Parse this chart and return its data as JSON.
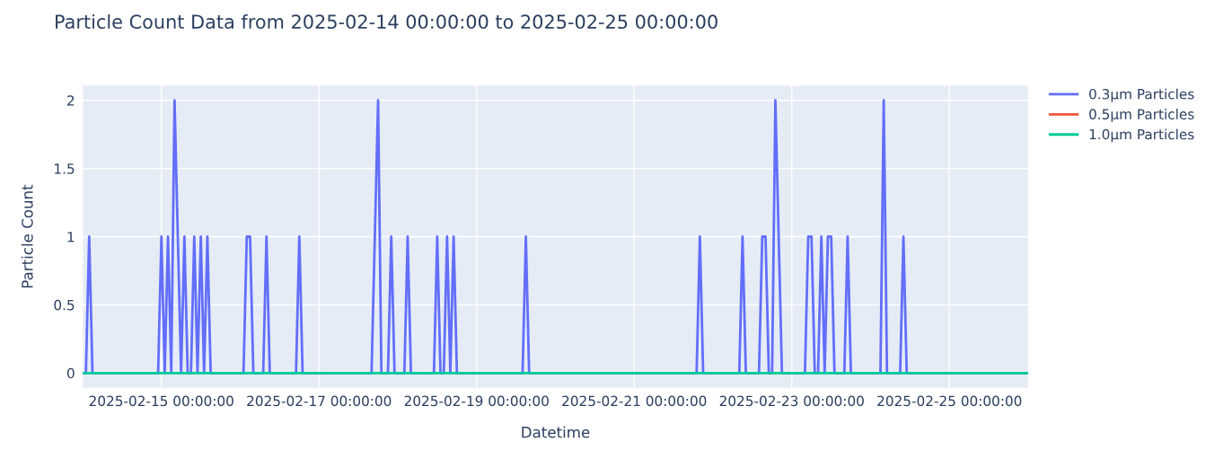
{
  "chart_data": {
    "type": "line",
    "title": "Particle Count Data from 2025-02-14 00:00:00 to 2025-02-25 00:00:00",
    "xlabel": "Datetime",
    "ylabel": "Particle Count",
    "series": [
      {
        "name": "0.3µm Particles",
        "color": "#636efa",
        "x": [
          "2025-02-14T00:00",
          "2025-02-14T01:00",
          "2025-02-14T02:00",
          "2025-02-14T03:00",
          "2025-02-14T23:00",
          "2025-02-15T00:00",
          "2025-02-15T01:00",
          "2025-02-15T02:00",
          "2025-02-15T03:00",
          "2025-02-15T04:00",
          "2025-02-15T05:00",
          "2025-02-15T06:00",
          "2025-02-15T07:00",
          "2025-02-15T08:00",
          "2025-02-15T09:00",
          "2025-02-15T10:00",
          "2025-02-15T11:00",
          "2025-02-15T12:00",
          "2025-02-15T13:00",
          "2025-02-15T14:00",
          "2025-02-15T15:00",
          "2025-02-16T01:00",
          "2025-02-16T02:00",
          "2025-02-16T03:00",
          "2025-02-16T04:00",
          "2025-02-16T07:00",
          "2025-02-16T08:00",
          "2025-02-16T09:00",
          "2025-02-16T17:00",
          "2025-02-16T18:00",
          "2025-02-16T19:00",
          "2025-02-17T16:00",
          "2025-02-17T17:00",
          "2025-02-17T18:00",
          "2025-02-17T19:00",
          "2025-02-17T21:00",
          "2025-02-17T22:00",
          "2025-02-17T23:00",
          "2025-02-18T02:00",
          "2025-02-18T03:00",
          "2025-02-18T04:00",
          "2025-02-18T11:00",
          "2025-02-18T12:00",
          "2025-02-18T13:00",
          "2025-02-18T14:00",
          "2025-02-18T15:00",
          "2025-02-18T16:00",
          "2025-02-18T17:00",
          "2025-02-18T18:00",
          "2025-02-19T14:00",
          "2025-02-19T15:00",
          "2025-02-19T16:00",
          "2025-02-21T19:00",
          "2025-02-21T20:00",
          "2025-02-21T21:00",
          "2025-02-22T08:00",
          "2025-02-22T09:00",
          "2025-02-22T10:00",
          "2025-02-22T14:00",
          "2025-02-22T15:00",
          "2025-02-22T16:00",
          "2025-02-22T17:00",
          "2025-02-22T18:00",
          "2025-02-22T19:00",
          "2025-02-22T20:00",
          "2025-02-22T21:00",
          "2025-02-23T04:00",
          "2025-02-23T05:00",
          "2025-02-23T06:00",
          "2025-02-23T07:00",
          "2025-02-23T08:00",
          "2025-02-23T09:00",
          "2025-02-23T10:00",
          "2025-02-23T11:00",
          "2025-02-23T12:00",
          "2025-02-23T13:00",
          "2025-02-23T16:00",
          "2025-02-23T17:00",
          "2025-02-23T18:00",
          "2025-02-24T03:00",
          "2025-02-24T04:00",
          "2025-02-24T05:00",
          "2025-02-24T09:00",
          "2025-02-24T10:00",
          "2025-02-24T11:00",
          "2025-02-26T00:00"
        ],
        "values": [
          0,
          0,
          1,
          0,
          0,
          1,
          0,
          1,
          0,
          2,
          1,
          0,
          1,
          0,
          0,
          1,
          0,
          1,
          0,
          1,
          0,
          0,
          1,
          1,
          0,
          0,
          1,
          0,
          0,
          1,
          0,
          0,
          1,
          2,
          0,
          0,
          1,
          0,
          0,
          1,
          0,
          0,
          1,
          0,
          0,
          1,
          0,
          1,
          0,
          0,
          1,
          0,
          0,
          1,
          0,
          0,
          1,
          0,
          0,
          1,
          1,
          0,
          0,
          2,
          1,
          0,
          0,
          1,
          1,
          0,
          0,
          1,
          0,
          1,
          1,
          0,
          0,
          1,
          0,
          0,
          2,
          0,
          0,
          1,
          0,
          0
        ]
      },
      {
        "name": "0.5µm Particles",
        "color": "#ef553b"
      },
      {
        "name": "1.0µm Particles",
        "color": "#00cc96",
        "x": [
          "2025-02-14T00:00",
          "2025-02-26T00:00"
        ],
        "values": [
          0,
          0
        ]
      }
    ],
    "xlim": [
      "2025-02-14T00:00",
      "2025-02-26T00:00"
    ],
    "xticks": [
      {
        "value": "2025-02-15T00:00",
        "label": "2025-02-15 00:00:00"
      },
      {
        "value": "2025-02-17T00:00",
        "label": "2025-02-17 00:00:00"
      },
      {
        "value": "2025-02-19T00:00",
        "label": "2025-02-19 00:00:00"
      },
      {
        "value": "2025-02-21T00:00",
        "label": "2025-02-21 00:00:00"
      },
      {
        "value": "2025-02-23T00:00",
        "label": "2025-02-23 00:00:00"
      },
      {
        "value": "2025-02-25T00:00",
        "label": "2025-02-25 00:00:00"
      }
    ],
    "ylim": [
      -0.11,
      2.11
    ],
    "yticks": [
      0,
      0.5,
      1,
      1.5,
      2
    ],
    "grid": true,
    "legend": "top right",
    "marker": "none",
    "line_style": "solid"
  }
}
